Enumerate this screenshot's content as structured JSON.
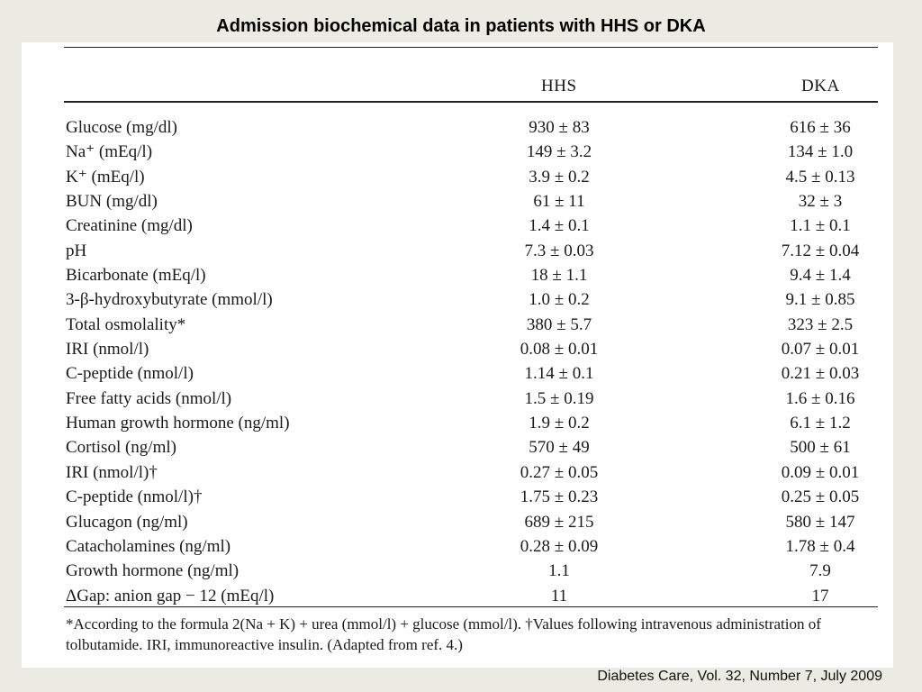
{
  "slide": {
    "title": "Admission biochemical data in patients with HHS or DKA",
    "citation": "Diabetes Care, Vol. 32, Number 7, July 2009"
  },
  "table": {
    "columns": [
      "HHS",
      "DKA"
    ],
    "rows": [
      {
        "label": "Glucose (mg/dl)",
        "hhs": "930 ± 83",
        "dka": "616 ± 36"
      },
      {
        "label": "Na⁺ (mEq/l)",
        "hhs": "149 ± 3.2",
        "dka": "134 ± 1.0"
      },
      {
        "label": "K⁺ (mEq/l)",
        "hhs": "3.9 ± 0.2",
        "dka": "4.5 ± 0.13"
      },
      {
        "label": "BUN (mg/dl)",
        "hhs": "61 ± 11",
        "dka": "32 ± 3"
      },
      {
        "label": "Creatinine (mg/dl)",
        "hhs": "1.4 ± 0.1",
        "dka": "1.1 ± 0.1"
      },
      {
        "label": "pH",
        "hhs": "7.3 ± 0.03",
        "dka": "7.12 ± 0.04"
      },
      {
        "label": "Bicarbonate (mEq/l)",
        "hhs": "18 ± 1.1",
        "dka": "9.4 ± 1.4"
      },
      {
        "label": "3-β-hydroxybutyrate (mmol/l)",
        "hhs": "1.0 ± 0.2",
        "dka": "9.1 ± 0.85"
      },
      {
        "label": "Total osmolality*",
        "hhs": "380 ± 5.7",
        "dka": "323 ± 2.5"
      },
      {
        "label": "IRI (nmol/l)",
        "hhs": "0.08 ± 0.01",
        "dka": "0.07 ± 0.01"
      },
      {
        "label": "C-peptide (nmol/l)",
        "hhs": "1.14 ± 0.1",
        "dka": "0.21 ± 0.03"
      },
      {
        "label": "Free fatty acids (nmol/l)",
        "hhs": "1.5 ± 0.19",
        "dka": "1.6 ± 0.16"
      },
      {
        "label": "Human growth hormone (ng/ml)",
        "hhs": "1.9 ± 0.2",
        "dka": "6.1 ± 1.2"
      },
      {
        "label": "Cortisol (ng/ml)",
        "hhs": "570 ± 49",
        "dka": "500 ± 61"
      },
      {
        "label": "IRI (nmol/l)†",
        "hhs": "0.27 ± 0.05",
        "dka": "0.09 ± 0.01"
      },
      {
        "label": "C-peptide (nmol/l)†",
        "hhs": "1.75 ± 0.23",
        "dka": "0.25 ± 0.05"
      },
      {
        "label": "Glucagon (ng/ml)",
        "hhs": "689 ± 215",
        "dka": "580 ± 147"
      },
      {
        "label": "Catacholamines (ng/ml)",
        "hhs": "0.28 ± 0.09",
        "dka": "1.78 ± 0.4"
      },
      {
        "label": "Growth hormone (ng/ml)",
        "hhs": "1.1",
        "dka": "7.9"
      },
      {
        "label": "ΔGap: anion gap − 12 (mEq/l)",
        "hhs": "11",
        "dka": "17"
      }
    ],
    "footnote": "*According to the formula 2(Na + K) + urea (mmol/l) + glucose (mmol/l). †Values following intravenous administration of tolbutamide. IRI, immunoreactive insulin. (Adapted from ref. 4.)"
  }
}
